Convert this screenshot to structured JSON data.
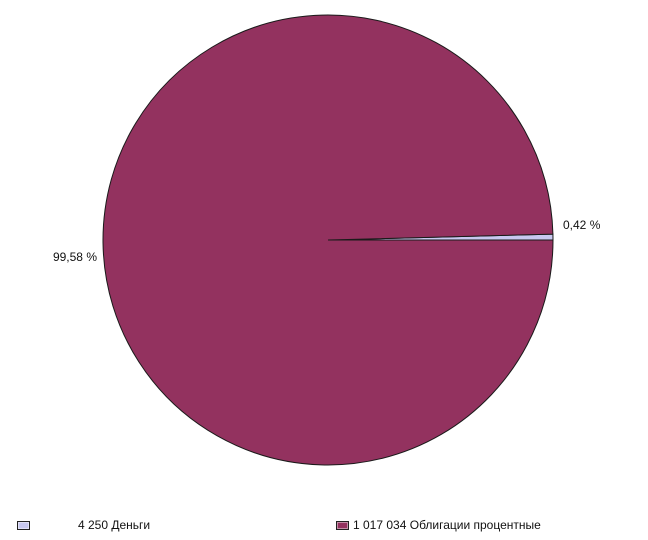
{
  "chart_data": {
    "type": "pie",
    "title": "",
    "slices": [
      {
        "label": "Деньги",
        "value": 4250,
        "value_label": "4 250",
        "percent_label": "0,42 %",
        "color": "#c8c8f0"
      },
      {
        "label": "Облигации процентные",
        "value": 1017034,
        "value_label": "1 017 034",
        "percent_label": "99,58 %",
        "color": "#93325f"
      }
    ],
    "legend_position": "bottom",
    "start_direction": "right (3 o'clock)",
    "slice_direction": "counter-clockwise",
    "outline_color": "#1a1a1a"
  }
}
